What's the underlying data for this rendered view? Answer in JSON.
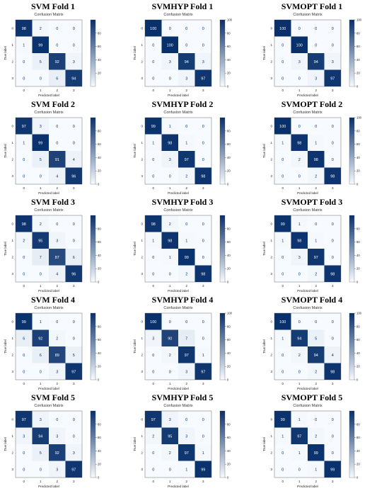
{
  "colors": {
    "low": "#f7fbff",
    "high": "#08306b",
    "dark_text": "#ffffff",
    "light_text": "#08306b"
  },
  "chart_data": [
    {
      "type": "heatmap",
      "fold_title": "SVM Fold 1",
      "title": "Confusion Matrix",
      "xlabel": "Predicted label",
      "ylabel": "True label",
      "ticks": [
        "0",
        "1",
        "2",
        "3"
      ],
      "colorbar_ticks": [
        20,
        40,
        60,
        80
      ],
      "colorbar_max": 100,
      "matrix": [
        [
          98,
          2,
          0,
          0
        ],
        [
          1,
          99,
          0,
          0
        ],
        [
          0,
          5,
          92,
          3
        ],
        [
          0,
          0,
          6,
          94
        ]
      ]
    },
    {
      "type": "heatmap",
      "fold_title": "SVMHYP Fold 1",
      "title": "Confusion Matrix",
      "xlabel": "Predicted label",
      "ylabel": "True label",
      "ticks": [
        "0",
        "1",
        "2",
        "3"
      ],
      "colorbar_ticks": [
        0,
        20,
        40,
        60,
        80,
        100
      ],
      "colorbar_max": 100,
      "matrix": [
        [
          100,
          0,
          0,
          0
        ],
        [
          0,
          100,
          0,
          0
        ],
        [
          0,
          3,
          94,
          3
        ],
        [
          0,
          0,
          3,
          97
        ]
      ]
    },
    {
      "type": "heatmap",
      "fold_title": "SVMOPT Fold 1",
      "title": "Confusion Matrix",
      "xlabel": "Predicted label",
      "ylabel": "True label",
      "ticks": [
        "0",
        "1",
        "2",
        "3"
      ],
      "colorbar_ticks": [
        0,
        20,
        40,
        60,
        80,
        100
      ],
      "colorbar_max": 100,
      "matrix": [
        [
          100,
          0,
          0,
          0
        ],
        [
          0,
          100,
          0,
          0
        ],
        [
          0,
          3,
          94,
          3
        ],
        [
          0,
          0,
          3,
          97
        ]
      ]
    },
    {
      "type": "heatmap",
      "fold_title": "SVM Fold 2",
      "title": "Confusion Matrix",
      "xlabel": "Predicted label",
      "ylabel": "True label",
      "ticks": [
        "0",
        "1",
        "2",
        "3"
      ],
      "colorbar_ticks": [
        0,
        20,
        40,
        60,
        80
      ],
      "colorbar_max": 100,
      "matrix": [
        [
          97,
          3,
          0,
          0
        ],
        [
          1,
          99,
          0,
          0
        ],
        [
          0,
          5,
          91,
          4
        ],
        [
          0,
          0,
          4,
          96
        ]
      ]
    },
    {
      "type": "heatmap",
      "fold_title": "SVMHYP Fold 2",
      "title": "Confusion Matrix",
      "xlabel": "Predicted label",
      "ylabel": "True label",
      "ticks": [
        "0",
        "1",
        "2",
        "3"
      ],
      "colorbar_ticks": [
        0,
        20,
        40,
        60,
        80
      ],
      "colorbar_max": 100,
      "matrix": [
        [
          99,
          1,
          0,
          0
        ],
        [
          1,
          98,
          1,
          0
        ],
        [
          0,
          3,
          97,
          0
        ],
        [
          0,
          0,
          2,
          98
        ]
      ]
    },
    {
      "type": "heatmap",
      "fold_title": "SVMOPT Fold 2",
      "title": "Confusion Matrix",
      "xlabel": "Predicted label",
      "ylabel": "True label",
      "ticks": [
        "0",
        "1",
        "2",
        "3"
      ],
      "colorbar_ticks": [
        0,
        20,
        40,
        60,
        80,
        100
      ],
      "colorbar_max": 100,
      "matrix": [
        [
          100,
          0,
          0,
          0
        ],
        [
          1,
          98,
          1,
          0
        ],
        [
          0,
          2,
          98,
          0
        ],
        [
          0,
          0,
          2,
          98
        ]
      ]
    },
    {
      "type": "heatmap",
      "fold_title": "SVM Fold 3",
      "title": "Confusion Matrix",
      "xlabel": "Predicted label",
      "ylabel": "True label",
      "ticks": [
        "0",
        "1",
        "2",
        "3"
      ],
      "colorbar_ticks": [
        0,
        20,
        40,
        60,
        80
      ],
      "colorbar_max": 100,
      "matrix": [
        [
          98,
          2,
          0,
          0
        ],
        [
          2,
          95,
          3,
          0
        ],
        [
          0,
          7,
          87,
          6
        ],
        [
          0,
          0,
          4,
          96
        ]
      ]
    },
    {
      "type": "heatmap",
      "fold_title": "SVMHYP Fold 3",
      "title": "Confusion Matrix",
      "xlabel": "Predicted label",
      "ylabel": "True label",
      "ticks": [
        "0",
        "1",
        "2",
        "3"
      ],
      "colorbar_ticks": [
        0,
        20,
        40,
        60,
        80
      ],
      "colorbar_max": 100,
      "matrix": [
        [
          98,
          2,
          0,
          0
        ],
        [
          1,
          98,
          1,
          0
        ],
        [
          0,
          1,
          99,
          0
        ],
        [
          0,
          0,
          2,
          98
        ]
      ]
    },
    {
      "type": "heatmap",
      "fold_title": "SVMOPT Fold 3",
      "title": "Confusion Matrix",
      "xlabel": "Predicted label",
      "ylabel": "True label",
      "ticks": [
        "0",
        "1",
        "2",
        "3"
      ],
      "colorbar_ticks": [
        0,
        20,
        40,
        60,
        80
      ],
      "colorbar_max": 100,
      "matrix": [
        [
          99,
          1,
          0,
          0
        ],
        [
          1,
          98,
          1,
          0
        ],
        [
          0,
          3,
          97,
          0
        ],
        [
          0,
          0,
          2,
          98
        ]
      ]
    },
    {
      "type": "heatmap",
      "fold_title": "SVM Fold 4",
      "title": "Confusion Matrix",
      "xlabel": "Predicted label",
      "ylabel": "True label",
      "ticks": [
        "0",
        "1",
        "2",
        "3"
      ],
      "colorbar_ticks": [
        0,
        20,
        40,
        60,
        80
      ],
      "colorbar_max": 100,
      "matrix": [
        [
          99,
          1,
          0,
          0
        ],
        [
          6,
          92,
          2,
          0
        ],
        [
          0,
          6,
          89,
          5
        ],
        [
          0,
          0,
          3,
          97
        ]
      ]
    },
    {
      "type": "heatmap",
      "fold_title": "SVMHYP Fold 4",
      "title": "Confusion Matrix",
      "xlabel": "Predicted label",
      "ylabel": "True label",
      "ticks": [
        "0",
        "1",
        "2",
        "3"
      ],
      "colorbar_ticks": [
        0,
        20,
        40,
        60,
        80,
        100
      ],
      "colorbar_max": 100,
      "matrix": [
        [
          100,
          0,
          0,
          0
        ],
        [
          3,
          90,
          7,
          0
        ],
        [
          0,
          2,
          97,
          1
        ],
        [
          0,
          0,
          3,
          97
        ]
      ]
    },
    {
      "type": "heatmap",
      "fold_title": "SVMOPT Fold 4",
      "title": "Confusion Matrix",
      "xlabel": "Predicted label",
      "ylabel": "True label",
      "ticks": [
        "0",
        "1",
        "2",
        "3"
      ],
      "colorbar_ticks": [
        0,
        20,
        40,
        60,
        80,
        100
      ],
      "colorbar_max": 100,
      "matrix": [
        [
          100,
          0,
          0,
          0
        ],
        [
          1,
          94,
          5,
          0
        ],
        [
          0,
          2,
          94,
          4
        ],
        [
          0,
          0,
          2,
          98
        ]
      ]
    },
    {
      "type": "heatmap",
      "fold_title": "SVM Fold 5",
      "title": "Confusion Matrix",
      "xlabel": "Predicted label",
      "ylabel": "True label",
      "ticks": [
        "0",
        "1",
        "2",
        "3"
      ],
      "colorbar_ticks": [
        0,
        20,
        40,
        60,
        80
      ],
      "colorbar_max": 100,
      "matrix": [
        [
          97,
          3,
          0,
          0
        ],
        [
          3,
          94,
          3,
          0
        ],
        [
          0,
          5,
          92,
          3
        ],
        [
          0,
          0,
          3,
          97
        ]
      ]
    },
    {
      "type": "heatmap",
      "fold_title": "SVMHYP Fold 5",
      "title": "Confusion Matrix",
      "xlabel": "Predicted label",
      "ylabel": "True label",
      "ticks": [
        "0",
        "1",
        "2",
        "3"
      ],
      "colorbar_ticks": [
        0,
        20,
        40,
        60,
        80
      ],
      "colorbar_max": 100,
      "matrix": [
        [
          97,
          3,
          0,
          0
        ],
        [
          2,
          95,
          3,
          0
        ],
        [
          0,
          2,
          97,
          1
        ],
        [
          0,
          0,
          1,
          99
        ]
      ]
    },
    {
      "type": "heatmap",
      "fold_title": "SVMOPT Fold 5",
      "title": "Confusion Matrix",
      "xlabel": "Predicted label",
      "ylabel": "True label",
      "ticks": [
        "0",
        "1",
        "2",
        "3"
      ],
      "colorbar_ticks": [
        0,
        20,
        40,
        60,
        80
      ],
      "colorbar_max": 100,
      "matrix": [
        [
          99,
          1,
          0,
          0
        ],
        [
          1,
          97,
          2,
          0
        ],
        [
          0,
          1,
          99,
          0
        ],
        [
          0,
          0,
          1,
          99
        ]
      ]
    }
  ]
}
